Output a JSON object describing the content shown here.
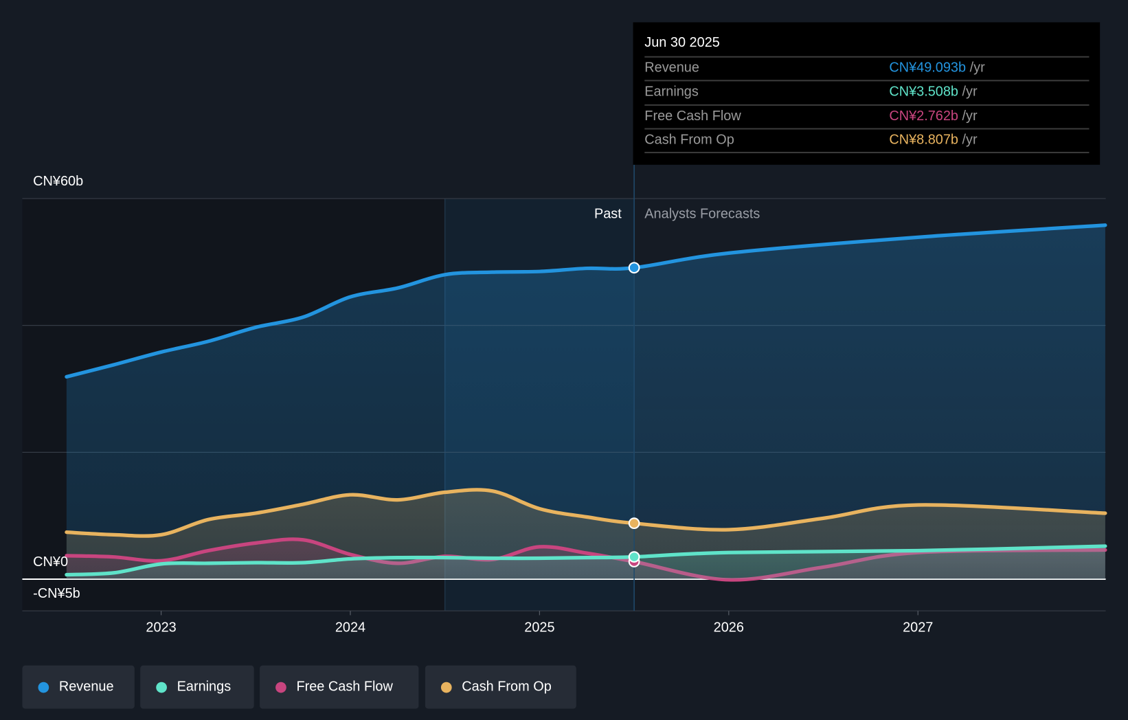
{
  "tooltip": {
    "date": "Jun 30 2025",
    "rows": [
      {
        "label": "Revenue",
        "value": "CN¥49.093b",
        "unit": "/yr",
        "color": "#2394df"
      },
      {
        "label": "Earnings",
        "value": "CN¥3.508b",
        "unit": "/yr",
        "color": "#5fe3c9"
      },
      {
        "label": "Free Cash Flow",
        "value": "CN¥2.762b",
        "unit": "/yr",
        "color": "#c8457f"
      },
      {
        "label": "Cash From Op",
        "value": "CN¥8.807b",
        "unit": "/yr",
        "color": "#e8b35f"
      }
    ]
  },
  "segments": {
    "past": "Past",
    "forecast": "Analysts Forecasts"
  },
  "legend": [
    {
      "label": "Revenue",
      "color": "#2394df"
    },
    {
      "label": "Earnings",
      "color": "#5fe3c9"
    },
    {
      "label": "Free Cash Flow",
      "color": "#c8457f"
    },
    {
      "label": "Cash From Op",
      "color": "#e8b35f"
    }
  ],
  "chart_data": {
    "type": "line",
    "title": "",
    "xlabel": "",
    "ylabel": "",
    "ylim": [
      -5,
      60
    ],
    "xlim": [
      2022.3,
      2028.0
    ],
    "y_tick_labels": {
      "top": "CN¥60b",
      "zero": "CN¥0",
      "bottom": "-CN¥5b"
    },
    "y_gridlines": [
      60,
      40,
      20,
      0,
      -5
    ],
    "x_ticks": [
      2023,
      2024,
      2025,
      2026,
      2027
    ],
    "x_tick_labels": [
      "2023",
      "2024",
      "2025",
      "2026",
      "2027"
    ],
    "past_highlight": [
      2024.5,
      2025.5
    ],
    "forecast_start": 2025.5,
    "units": "CN¥ billions",
    "series": [
      {
        "name": "Revenue",
        "color": "#2394df",
        "x": [
          2022.5,
          2022.75,
          2023,
          2023.25,
          2023.5,
          2023.75,
          2024,
          2024.25,
          2024.5,
          2024.75,
          2025,
          2025.25,
          2025.5,
          2026,
          2027,
          2027.99
        ],
        "y": [
          31.9,
          33.8,
          35.8,
          37.5,
          39.7,
          41.3,
          44.5,
          45.9,
          48.0,
          48.4,
          48.5,
          49.0,
          49.093,
          51.4,
          53.9,
          55.8
        ]
      },
      {
        "name": "Cash From Op",
        "color": "#e8b35f",
        "x": [
          2022.5,
          2022.75,
          2023,
          2023.25,
          2023.5,
          2023.75,
          2024,
          2024.25,
          2024.5,
          2024.75,
          2025,
          2025.25,
          2025.5,
          2026,
          2026.5,
          2027,
          2027.99
        ],
        "y": [
          7.4,
          7.0,
          7.0,
          9.4,
          10.4,
          11.8,
          13.3,
          12.5,
          13.7,
          13.9,
          11.1,
          9.8,
          8.807,
          7.8,
          9.6,
          11.7,
          10.4
        ]
      },
      {
        "name": "Free Cash Flow",
        "color": "#c8457f",
        "x": [
          2022.5,
          2022.75,
          2023,
          2023.25,
          2023.5,
          2023.75,
          2024,
          2024.25,
          2024.5,
          2024.75,
          2025,
          2025.25,
          2025.5,
          2026,
          2026.5,
          2027,
          2027.99
        ],
        "y": [
          3.7,
          3.5,
          2.9,
          4.5,
          5.7,
          6.2,
          3.9,
          2.5,
          3.6,
          3.1,
          5.1,
          4.1,
          2.762,
          -0.1,
          1.9,
          4.2,
          4.6
        ]
      },
      {
        "name": "Earnings",
        "color": "#5fe3c9",
        "x": [
          2022.5,
          2022.75,
          2023,
          2023.25,
          2023.5,
          2023.75,
          2024,
          2024.25,
          2024.5,
          2024.75,
          2025,
          2025.25,
          2025.5,
          2026,
          2027,
          2027.99
        ],
        "y": [
          0.7,
          1.0,
          2.4,
          2.5,
          2.6,
          2.6,
          3.2,
          3.4,
          3.4,
          3.3,
          3.3,
          3.4,
          3.508,
          4.2,
          4.5,
          5.2
        ]
      }
    ]
  }
}
